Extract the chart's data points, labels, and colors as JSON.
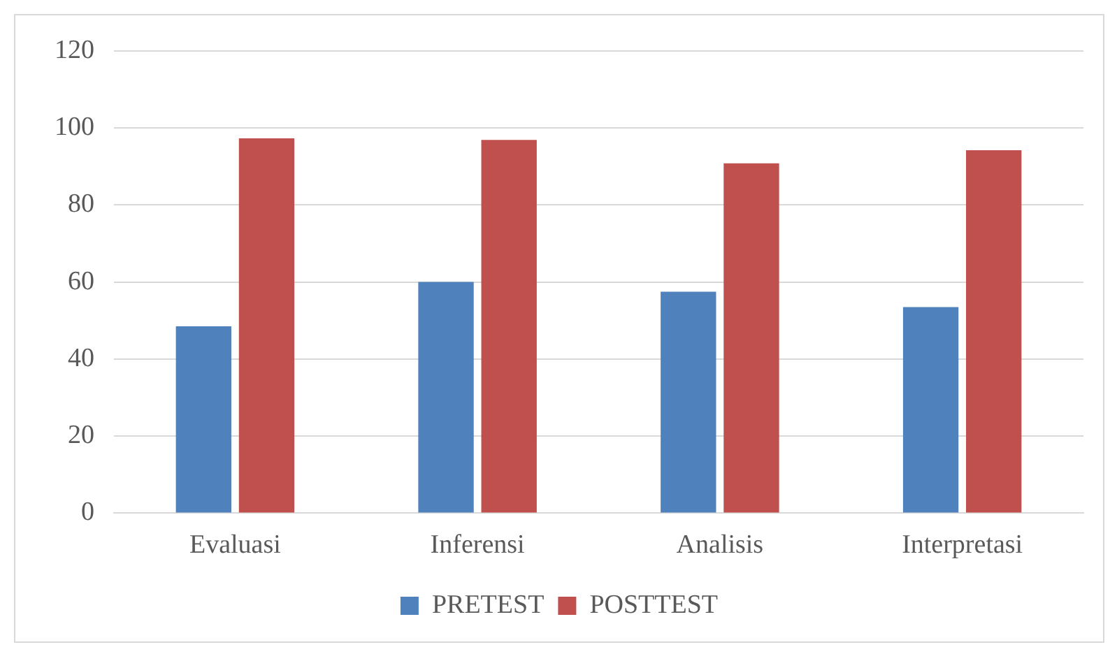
{
  "chart_data": {
    "type": "bar",
    "categories": [
      "Evaluasi",
      "Inferensi",
      "Analisis",
      "Interpretasi"
    ],
    "series": [
      {
        "name": "PRETEST",
        "color": "#4f81bd",
        "values": [
          48.5,
          60,
          57.5,
          53.5
        ]
      },
      {
        "name": "POSTTEST",
        "color": "#c0504d",
        "values": [
          97.3,
          96.9,
          90.8,
          94.2
        ]
      }
    ],
    "ylim": [
      0,
      120
    ],
    "yticks": [
      0,
      20,
      40,
      60,
      80,
      100,
      120
    ],
    "grid": "y",
    "legend": "bottom"
  }
}
